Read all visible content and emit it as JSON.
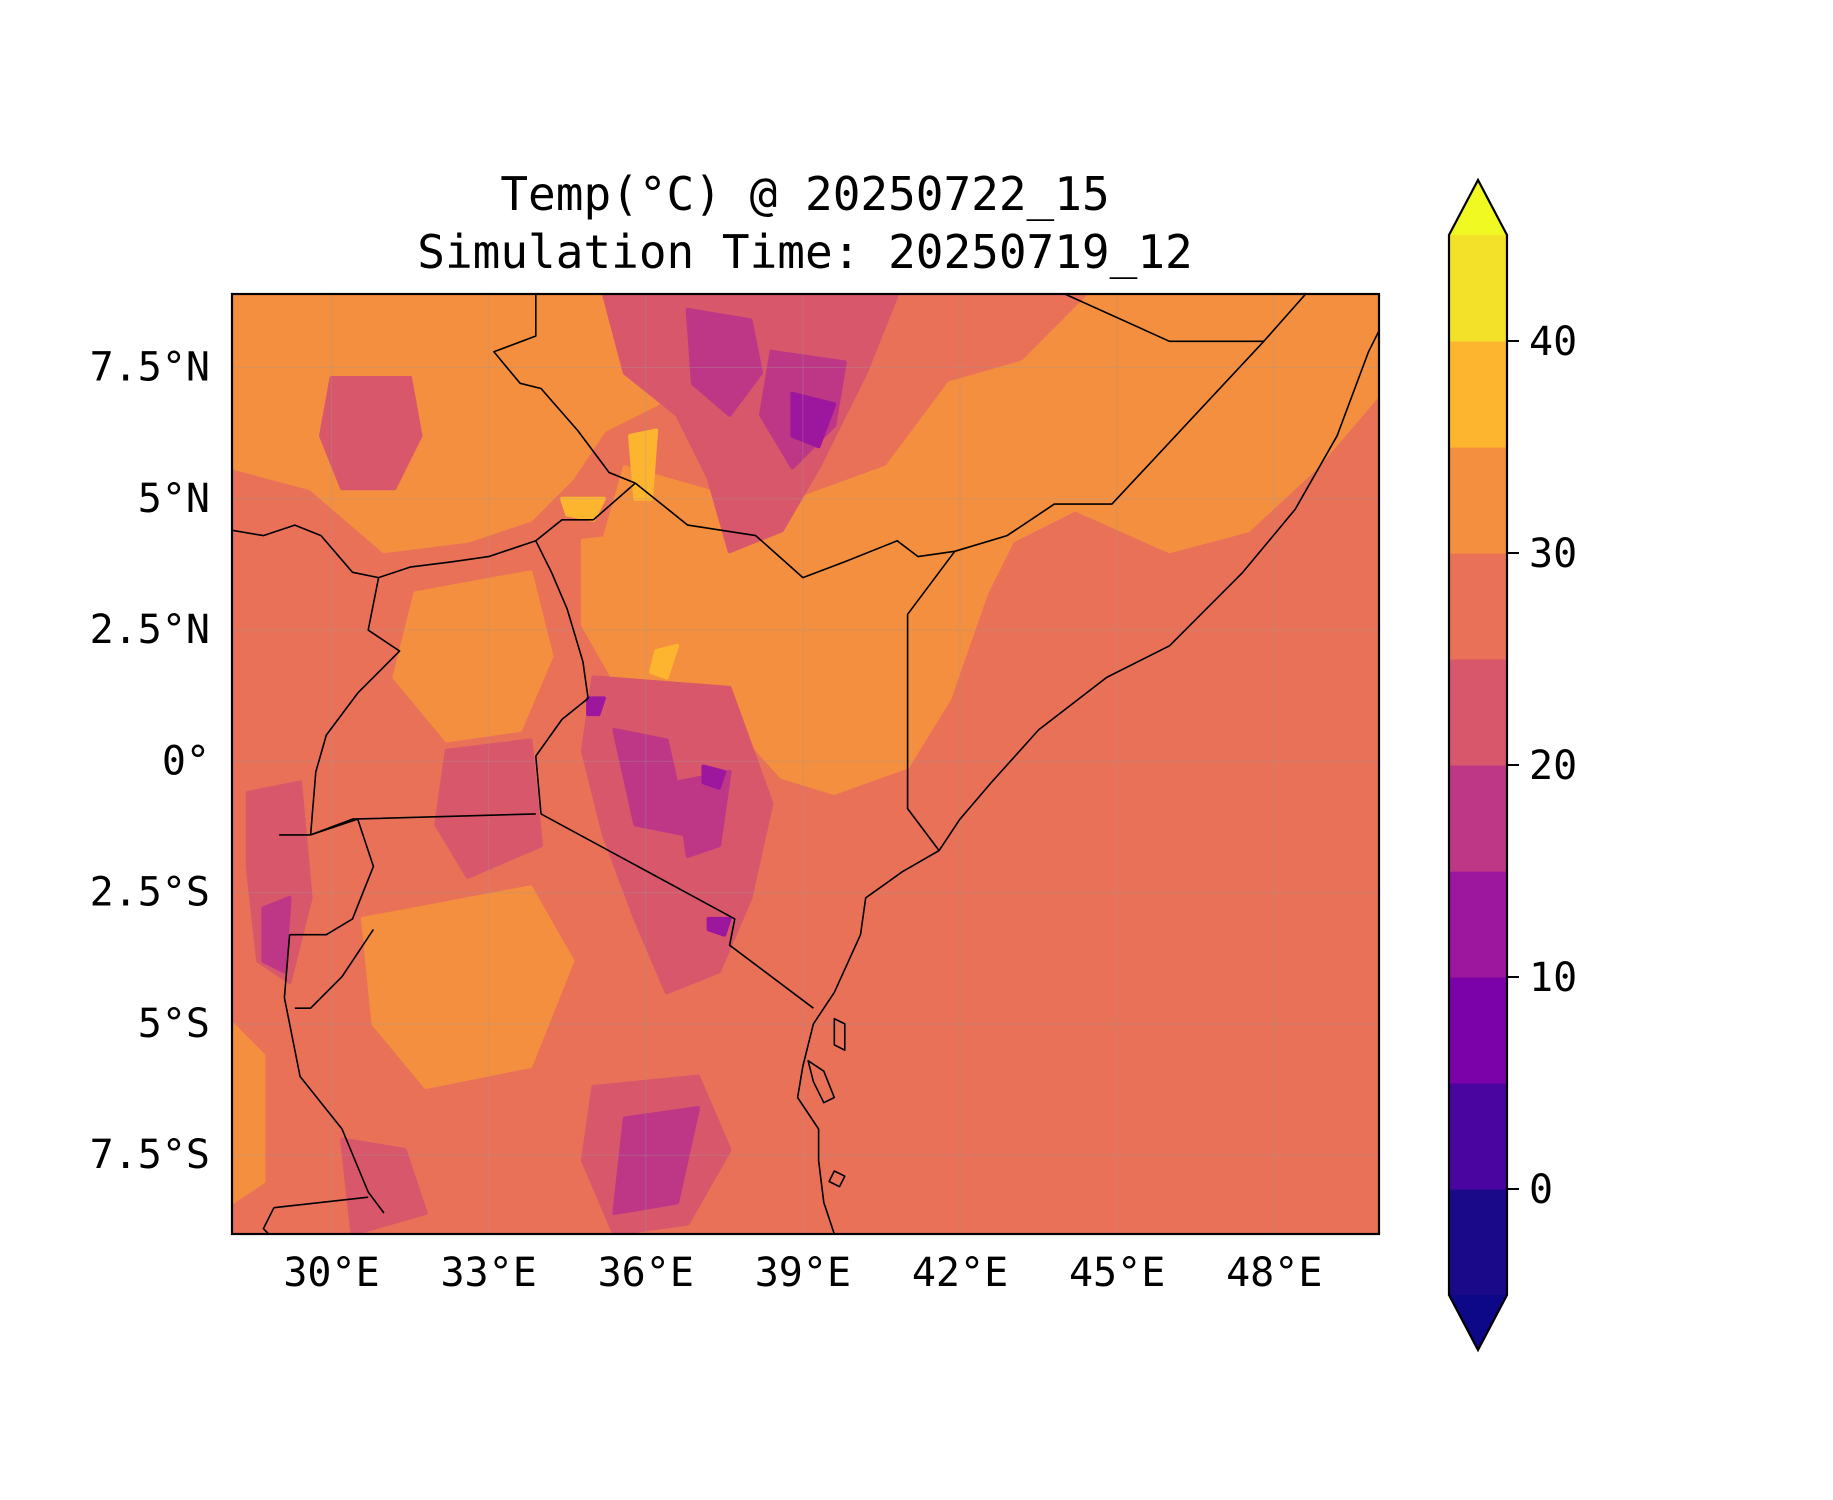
{
  "title": {
    "line1": "Temp(°C) @ 20250722_15",
    "line2": "Simulation Time: 20250719_12"
  },
  "map": {
    "projection": "PlateCarree",
    "lon_range": [
      28.1,
      50.0
    ],
    "lat_range": [
      -9.0,
      8.9
    ],
    "x_ticks": [
      {
        "value": 30,
        "label": "30°E"
      },
      {
        "value": 33,
        "label": "33°E"
      },
      {
        "value": 36,
        "label": "36°E"
      },
      {
        "value": 39,
        "label": "39°E"
      },
      {
        "value": 42,
        "label": "42°E"
      },
      {
        "value": 45,
        "label": "45°E"
      },
      {
        "value": 48,
        "label": "48°E"
      }
    ],
    "y_ticks": [
      {
        "value": 7.5,
        "label": "7.5°N"
      },
      {
        "value": 5,
        "label": "5°N"
      },
      {
        "value": 2.5,
        "label": "2.5°N"
      },
      {
        "value": 0,
        "label": "0°"
      },
      {
        "value": -2.5,
        "label": "2.5°S"
      },
      {
        "value": -5,
        "label": "5°S"
      },
      {
        "value": -7.5,
        "label": "7.5°S"
      }
    ],
    "gridlines": true,
    "background_band_color": "#e97158"
  },
  "colorbar": {
    "colormap": "plasma",
    "extend": "both",
    "levels": [
      -5,
      0,
      5,
      10,
      15,
      20,
      25,
      30,
      35,
      40,
      45
    ],
    "colors": [
      "#1a0a8a",
      "#4a04a0",
      "#7a02a8",
      "#9c179e",
      "#bd3786",
      "#d8576b",
      "#e97158",
      "#f48f3f",
      "#fdb42f",
      "#f3e028"
    ],
    "under_color": "#0d0887",
    "over_color": "#f0f921",
    "ticks": [
      {
        "value": 0,
        "label": "0"
      },
      {
        "value": 10,
        "label": "10"
      },
      {
        "value": 20,
        "label": "20"
      },
      {
        "value": 30,
        "label": "30"
      },
      {
        "value": 40,
        "label": "40"
      }
    ]
  }
}
